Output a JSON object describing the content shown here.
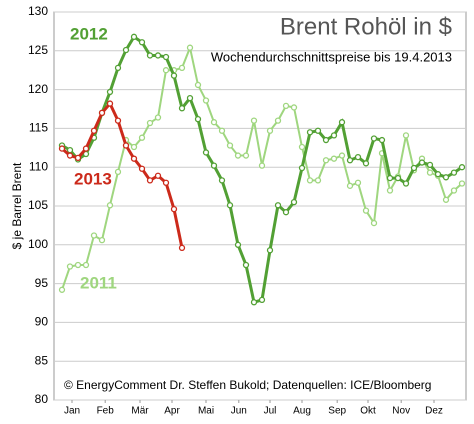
{
  "chart_data": {
    "type": "line",
    "title": "Brent Rohöl in $",
    "subtitle": "Wochendurchschnittspreise bis 19.4.2013",
    "y_label": "$ je Barrel  Brent",
    "source": "© EnergyComment Dr. Steffen Bukold; Datenquellen: ICE/Bloomberg",
    "x": [
      1,
      2,
      3,
      4,
      5,
      6,
      7,
      8,
      9,
      10,
      11,
      12,
      13,
      14,
      15,
      16,
      17,
      18,
      19,
      20,
      21,
      22,
      23,
      24,
      25,
      26,
      27,
      28,
      29,
      30,
      31,
      32,
      33,
      34,
      35,
      36,
      37,
      38,
      39,
      40,
      41,
      42,
      43,
      44,
      45,
      46,
      47,
      48,
      49,
      50,
      51
    ],
    "xlim": [
      0,
      51.5
    ],
    "xticks": [
      {
        "value": 2.25,
        "label": "Jan"
      },
      {
        "value": 6.4,
        "label": "Feb"
      },
      {
        "value": 10.75,
        "label": "Mär"
      },
      {
        "value": 14.75,
        "label": "Apr"
      },
      {
        "value": 19,
        "label": "Mai"
      },
      {
        "value": 23.1,
        "label": "Jun"
      },
      {
        "value": 27,
        "label": "Jul"
      },
      {
        "value": 31,
        "label": "Aug"
      },
      {
        "value": 35.4,
        "label": "Sep"
      },
      {
        "value": 39.25,
        "label": "Okt"
      },
      {
        "value": 43.4,
        "label": "Nov"
      },
      {
        "value": 47.5,
        "label": "Dez"
      }
    ],
    "ylim": [
      80,
      130
    ],
    "yticks": [
      80,
      85,
      90,
      95,
      100,
      105,
      110,
      115,
      120,
      125,
      130
    ],
    "grid": true,
    "series": [
      {
        "name": "2011",
        "color": "#9fd67f",
        "values": [
          94.2,
          97.2,
          97.4,
          97.4,
          101.2,
          100.6,
          105.1,
          109.4,
          113.5,
          112.6,
          113.8,
          115.7,
          116.4,
          122.5,
          122.5,
          122.8,
          125.4,
          120.6,
          118.6,
          115.8,
          114.7,
          112.8,
          111.5,
          111.5,
          116,
          110.2,
          114.7,
          116,
          117.9,
          117.7,
          112.6,
          108.3,
          108.3,
          110.9,
          111.1,
          111.5,
          107.6,
          108,
          104.4,
          102.8,
          111.8,
          107,
          108.8,
          114.1,
          109.6,
          111.1,
          109.3,
          108.9,
          105.8,
          107,
          107.9
        ]
      },
      {
        "name": "2012",
        "color": "#52a034",
        "values": [
          112.8,
          112.2,
          111,
          111.7,
          113.8,
          117,
          119.7,
          122.8,
          125.1,
          126.8,
          126.1,
          124.4,
          124.4,
          124.2,
          121.8,
          117.6,
          118.9,
          116.2,
          111.9,
          110.2,
          108.3,
          105.1,
          100,
          97.4,
          92.6,
          92.9,
          99.3,
          105.1,
          104.2,
          105.5,
          109.9,
          114.5,
          114.7,
          113.5,
          114.1,
          115.8,
          110.9,
          111.3,
          110.5,
          113.7,
          113.5,
          108.6,
          108.6,
          107.9,
          109.9,
          110.6,
          110.3,
          109.1,
          108.7,
          109.3,
          110
        ]
      },
      {
        "name": "2013",
        "color": "#cc2a1b",
        "values": [
          112.4,
          111.5,
          111.2,
          112.4,
          114.7,
          117,
          118.2,
          116,
          112.8,
          111.1,
          109.8,
          108.3,
          108.9,
          108,
          104.6,
          99.6,
          null,
          null,
          null,
          null,
          null,
          null,
          null,
          null,
          null,
          null,
          null,
          null,
          null,
          null,
          null,
          null,
          null,
          null,
          null,
          null,
          null,
          null,
          null,
          null,
          null,
          null,
          null,
          null,
          null,
          null,
          null,
          null,
          null,
          null,
          null
        ]
      }
    ]
  }
}
